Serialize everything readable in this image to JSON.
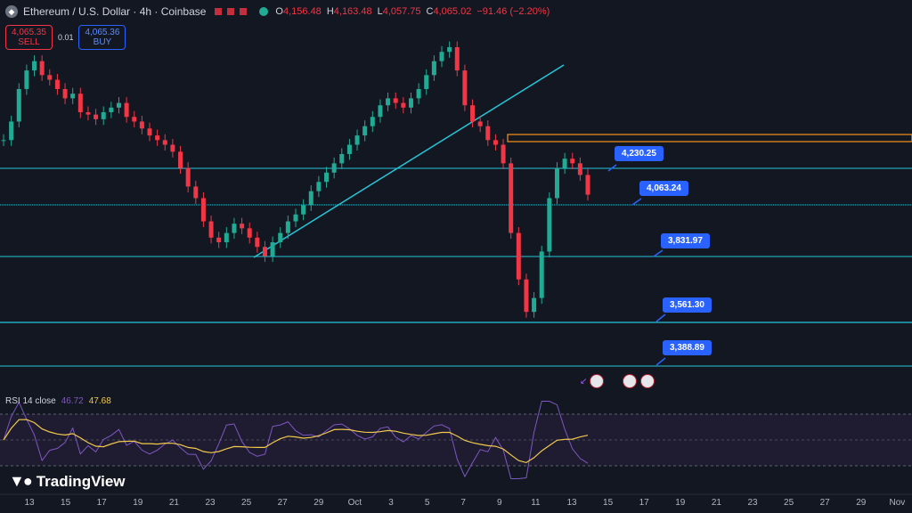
{
  "header": {
    "title": "Ethereum / U.S. Dollar · 4h · Coinbase",
    "ohlc": {
      "o_label": "O",
      "o": "4,156.48",
      "h_label": "H",
      "h": "4,163.48",
      "l_label": "L",
      "l": "4,057.75",
      "c_label": "C",
      "c": "4,065.02",
      "change": "−91.46 (−2.20%)"
    }
  },
  "trade": {
    "sell_price": "4,065.35",
    "sell_label": "SELL",
    "spread": "0.01",
    "buy_price": "4,065.36",
    "buy_label": "BUY"
  },
  "price_labels": [
    "4,230.25",
    "4,063.24",
    "3,831.97",
    "3,561.30",
    "3,388.89"
  ],
  "rsi": {
    "name": "RSI 14 close",
    "value": "46.72",
    "ma": "47.68"
  },
  "brand": "TradingView",
  "x_axis": [
    "13",
    "15",
    "17",
    "19",
    "21",
    "23",
    "25",
    "27",
    "29",
    "Oct",
    "3",
    "5",
    "7",
    "9",
    "11",
    "13",
    "15",
    "17",
    "19",
    "21",
    "23",
    "25",
    "27",
    "29",
    "Nov"
  ],
  "colors": {
    "background": "#131722",
    "up": "#22ab94",
    "down": "#f23645",
    "level_line": "#26c6da",
    "label": "#2962ff",
    "zone": "#f7931a",
    "rsi_line": "#7e57c2",
    "rsi_ma": "#f2c94c"
  },
  "chart_data": {
    "type": "candlestick",
    "symbol": "ETHUSD",
    "interval": "4h",
    "exchange": "Coinbase",
    "ylim": [
      3300,
      4750
    ],
    "levels": [
      4230.25,
      4063.24,
      3831.97,
      3561.3,
      3388.89
    ],
    "resistance_zone": [
      4280,
      4320
    ],
    "trendline": [
      [
        3830,
        4620
      ]
    ],
    "close_series": [
      4300,
      4380,
      4520,
      4600,
      4640,
      4580,
      4560,
      4520,
      4480,
      4500,
      4420,
      4410,
      4390,
      4420,
      4440,
      4460,
      4400,
      4380,
      4350,
      4320,
      4300,
      4280,
      4250,
      4180,
      4100,
      4050,
      3950,
      3880,
      3860,
      3900,
      3940,
      3920,
      3880,
      3840,
      3800,
      3860,
      3900,
      3950,
      3980,
      4020,
      4080,
      4120,
      4160,
      4200,
      4240,
      4280,
      4320,
      4360,
      4400,
      4450,
      4480,
      4460,
      4440,
      4480,
      4520,
      4580,
      4640,
      4680,
      4700,
      4600,
      4450,
      4380,
      4360,
      4300,
      4280,
      4200,
      3900,
      3700,
      3560,
      3620,
      3820,
      4050,
      4180,
      4220,
      4200,
      4150,
      4065
    ]
  }
}
